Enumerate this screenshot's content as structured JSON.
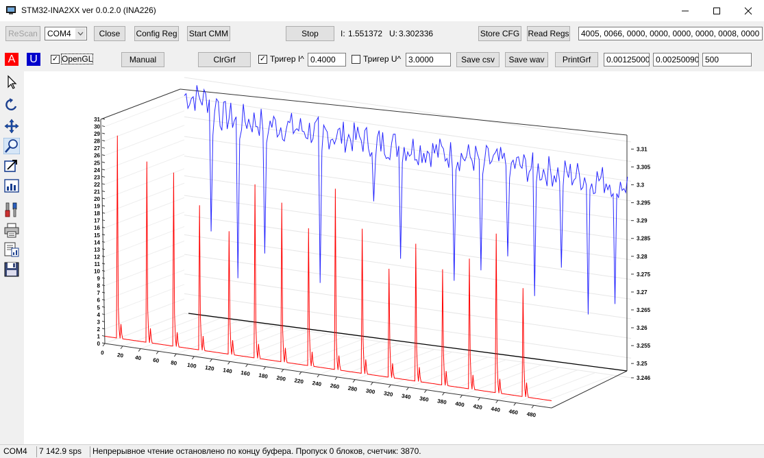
{
  "window": {
    "title": "STM32-INA2XX ver 0.0.2.0 (INA226)"
  },
  "toolbar1": {
    "rescan": "ReScan",
    "port": "COM4",
    "close": "Close",
    "config_reg": "Config Reg",
    "start_cmm": "Start CMM",
    "stop": "Stop",
    "current_label": "I:",
    "current_value": "1.551372",
    "voltage_label": "U:",
    "voltage_value": "3.302336",
    "store_cfg": "Store CFG",
    "read_regs": "Read Regs",
    "regs_value": "4005, 0066, 0000, 0000, 0000, 0000, 0008, 0000"
  },
  "toolbar2": {
    "a_label": "A",
    "u_label": "U",
    "opengl_label": "OpenGL",
    "opengl_checked": "✓",
    "manual": "Manual",
    "clrgrf": "ClrGrf",
    "trig_i_checked": "✓",
    "trig_i_label": "Тригер I^",
    "trig_i_value": "0.4000",
    "trig_u_label": "Тригер U^",
    "trig_u_value": "3.0000",
    "save_csv": "Save csv",
    "save_wav": "Save wav",
    "printgrf": "PrintGrf",
    "field1": "0.00125000",
    "field2": "0.00250090",
    "field3": "500"
  },
  "colors": {
    "current": "#ff0000",
    "voltage": "#0000ff",
    "a_box": "#ff0000",
    "u_box": "#0000cc"
  },
  "chart_data": {
    "type": "line",
    "title": "",
    "x": {
      "ticks": [
        0,
        20,
        40,
        60,
        80,
        100,
        120,
        140,
        160,
        180,
        200,
        220,
        240,
        260,
        280,
        300,
        320,
        340,
        360,
        380,
        400,
        420,
        440,
        460,
        480
      ],
      "range": [
        0,
        500
      ]
    },
    "y_left": {
      "ticks": [
        0,
        1,
        2,
        3,
        4,
        5,
        6,
        7,
        8,
        9,
        10,
        11,
        12,
        13,
        14,
        15,
        16,
        17,
        18,
        19,
        20,
        21,
        22,
        23,
        24,
        25,
        26,
        27,
        28,
        29,
        30,
        31
      ],
      "range": [
        0,
        31
      ]
    },
    "y_right": {
      "ticks": [
        3.246,
        3.25,
        3.255,
        3.26,
        3.265,
        3.27,
        3.275,
        3.28,
        3.285,
        3.29,
        3.295,
        3.3,
        3.305,
        3.31
      ],
      "tick_labels": [
        "3.246",
        "3.25",
        "3.255",
        "3.26",
        "3.265",
        "3.27",
        "3.275",
        "3.28",
        "3.285",
        "3.29",
        "3.295",
        "3.3",
        "3.305",
        "3.31"
      ],
      "range": [
        3.246,
        3.312
      ]
    },
    "series": [
      {
        "name": "I",
        "color": "#ff0000",
        "baseline": 1.0,
        "spike_x": [
          14,
          47,
          77,
          106,
          139,
          168,
          198,
          228,
          258,
          288,
          318,
          348,
          378,
          408,
          438,
          468
        ],
        "spike_peak": [
          29,
          26,
          25,
          21,
          18,
          25,
          23,
          20,
          26,
          21,
          16,
          20,
          17,
          19,
          23,
          16
        ]
      },
      {
        "name": "U",
        "color": "#0000ff",
        "baseline": 3.303,
        "dip_x": [
          30,
          60,
          90,
          121,
          152,
          183,
          212,
          242,
          271,
          302,
          332,
          362,
          392,
          422,
          452,
          482
        ],
        "dip_low": [
          3.27,
          3.258,
          3.266,
          3.275,
          3.26,
          3.262,
          3.285,
          3.27,
          3.262,
          3.266,
          3.27,
          3.275,
          3.265,
          3.274,
          3.262,
          3.266
        ]
      }
    ]
  },
  "status": {
    "port": "COM4",
    "rate": "7 142.9 sps",
    "message": "Непрерывное чтение остановлено по концу буфера. Пропуск 0 блоков, счетчик: 3870."
  }
}
